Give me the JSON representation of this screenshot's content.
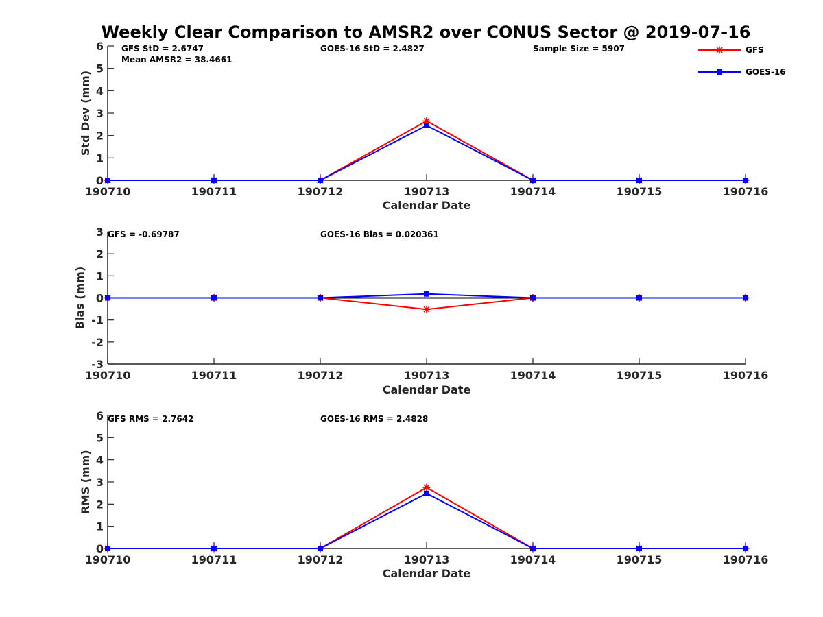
{
  "title": "Weekly Clear Comparison to AMSR2 over CONUS Sector @ 2019-07-16",
  "colors": {
    "gfs": "#ff0000",
    "goes": "#0000ff",
    "zero_line": "#000000",
    "axis": "#262626"
  },
  "legend": {
    "placement": "top-right",
    "entries": [
      {
        "name": "GFS",
        "color": "#ff0000",
        "marker": "asterisk"
      },
      {
        "name": "GOES-16",
        "color": "#0000ff",
        "marker": "square"
      }
    ]
  },
  "chart_data": [
    {
      "type": "line",
      "id": "stddev",
      "ylabel": "Std Dev (mm)",
      "xlabel": "Calendar Date",
      "categories": [
        "190710",
        "190711",
        "190712",
        "190713",
        "190714",
        "190715",
        "190716"
      ],
      "ylim": [
        0,
        6
      ],
      "yticks": [
        0,
        1,
        2,
        3,
        4,
        5,
        6
      ],
      "zero_line": false,
      "annotations": [
        "GFS StD = 2.6747",
        "Mean AMSR2 = 38.4661",
        "GOES-16 StD = 2.4827",
        "Sample Size = 5907"
      ],
      "series": [
        {
          "name": "GFS",
          "values": [
            0,
            0,
            0,
            2.65,
            0,
            0,
            0
          ]
        },
        {
          "name": "GOES-16",
          "values": [
            0,
            0,
            0,
            2.45,
            0,
            0,
            0
          ]
        }
      ]
    },
    {
      "type": "line",
      "id": "bias",
      "ylabel": "Bias (mm)",
      "xlabel": "Calendar Date",
      "categories": [
        "190710",
        "190711",
        "190712",
        "190713",
        "190714",
        "190715",
        "190716"
      ],
      "ylim": [
        -3,
        3
      ],
      "yticks": [
        -3,
        -2,
        -1,
        0,
        1,
        2,
        3
      ],
      "zero_line": true,
      "annotations": [
        "GFS = -0.69787",
        "GOES-16 Bias  = 0.020361"
      ],
      "series": [
        {
          "name": "GFS",
          "values": [
            0,
            0,
            0,
            -0.52,
            0,
            0,
            0
          ]
        },
        {
          "name": "GOES-16",
          "values": [
            0,
            0,
            0,
            0.18,
            0,
            0,
            0
          ]
        }
      ]
    },
    {
      "type": "line",
      "id": "rms",
      "ylabel": "RMS (mm)",
      "xlabel": "Calendar Date",
      "categories": [
        "190710",
        "190711",
        "190712",
        "190713",
        "190714",
        "190715",
        "190716"
      ],
      "ylim": [
        0,
        6
      ],
      "yticks": [
        0,
        1,
        2,
        3,
        4,
        5,
        6
      ],
      "zero_line": false,
      "annotations": [
        "GFS RMS = 2.7642",
        "GOES-16 RMS = 2.4828"
      ],
      "series": [
        {
          "name": "GFS",
          "values": [
            0,
            0,
            0,
            2.75,
            0,
            0,
            0
          ]
        },
        {
          "name": "GOES-16",
          "values": [
            0,
            0,
            0,
            2.48,
            0,
            0,
            0
          ]
        }
      ]
    }
  ]
}
